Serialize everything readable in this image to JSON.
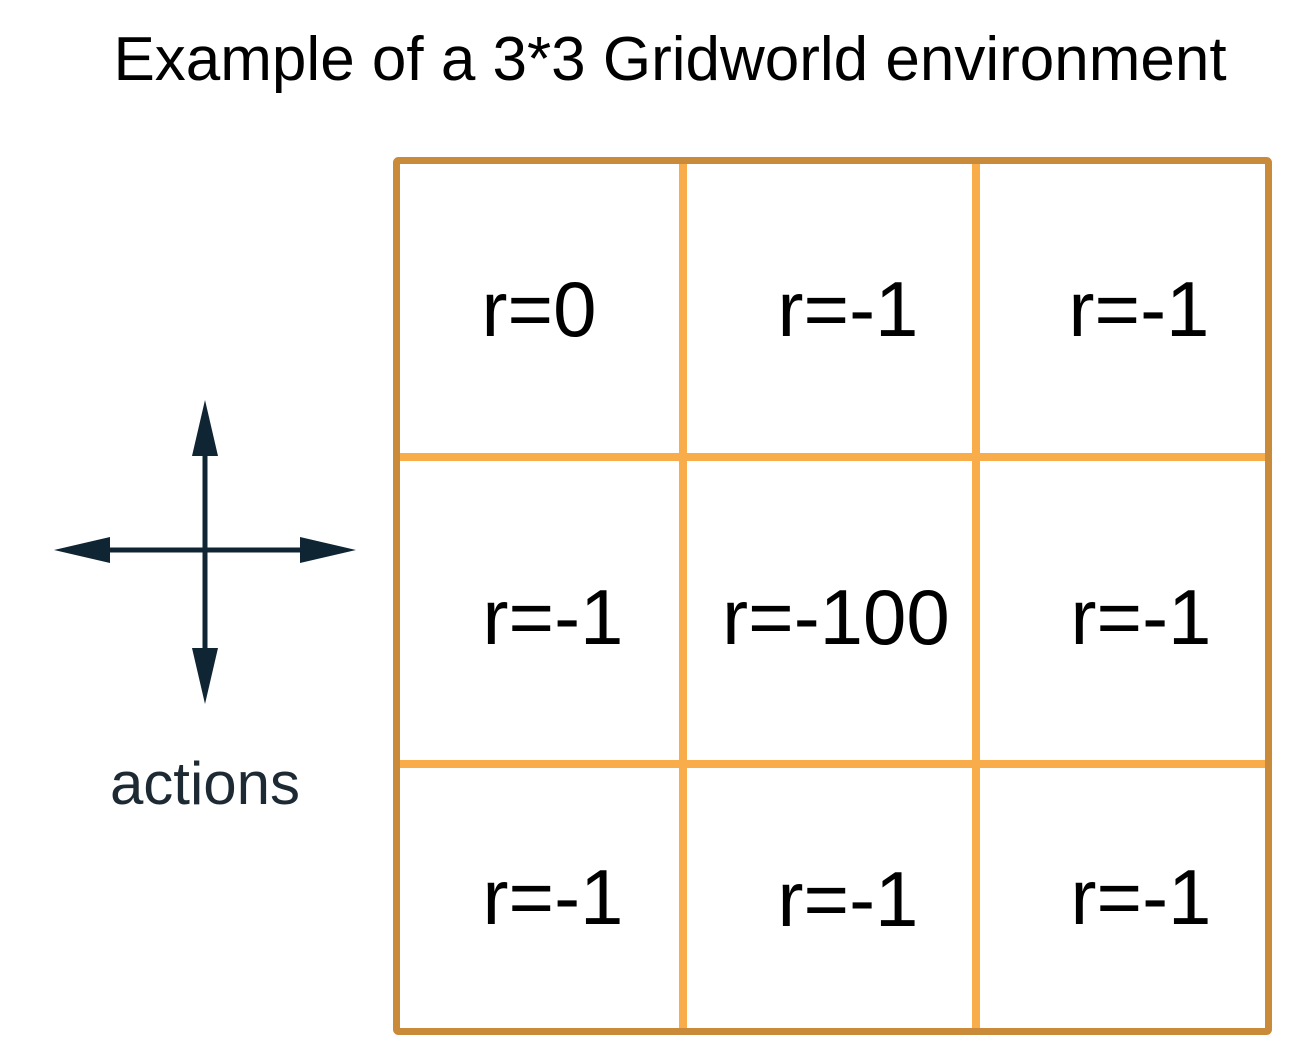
{
  "title": "Example of a 3*3 Gridworld environment",
  "actions": {
    "label": "actions",
    "icon": "four-way-arrows-icon"
  },
  "grid": {
    "rows": 3,
    "cols": 3,
    "border_color": "#c98a3a",
    "line_color": "#f8ad4a",
    "cells": [
      [
        "r=0",
        "r=-1",
        "r=-1"
      ],
      [
        "r=-1",
        "r=-100",
        "r=-1"
      ],
      [
        "r=-1",
        "r=-1",
        "r=-1"
      ]
    ]
  }
}
